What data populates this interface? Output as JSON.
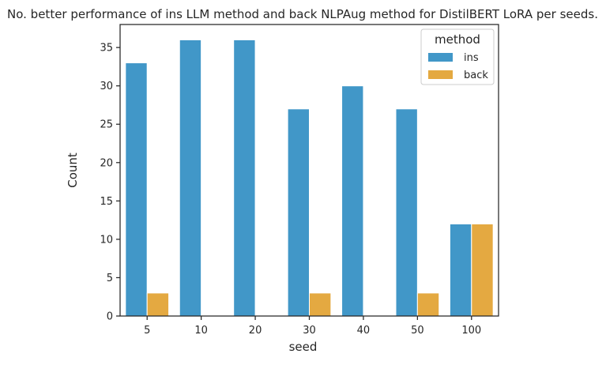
{
  "chart_data": {
    "type": "bar",
    "title": "No. better performance of ins LLM method and back NLPAug method for DistilBERT LoRA per seeds.",
    "xlabel": "seed",
    "ylabel": "Count",
    "categories": [
      "5",
      "10",
      "20",
      "30",
      "40",
      "50",
      "100"
    ],
    "series": [
      {
        "name": "ins",
        "color": "#4197c8",
        "values": [
          33,
          36,
          36,
          27,
          30,
          27,
          12
        ]
      },
      {
        "name": "back",
        "color": "#e4a941",
        "values": [
          3,
          0,
          0,
          3,
          0,
          3,
          12
        ]
      }
    ],
    "ylim": [
      0,
      38
    ],
    "yticks": [
      0,
      5,
      10,
      15,
      20,
      25,
      30,
      35
    ],
    "legend": {
      "title": "method",
      "placement": "top-right"
    },
    "grid": false
  }
}
